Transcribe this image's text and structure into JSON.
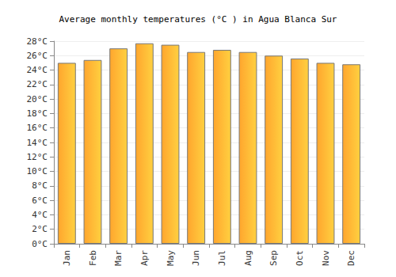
{
  "chart_data": {
    "type": "bar",
    "title": "Average monthly temperatures (°C ) in Agua Blanca Sur",
    "categories": [
      "Jan",
      "Feb",
      "Mar",
      "Apr",
      "May",
      "Jun",
      "Jul",
      "Aug",
      "Sep",
      "Oct",
      "Nov",
      "Dec"
    ],
    "values": [
      25.0,
      25.4,
      27.0,
      27.7,
      27.5,
      26.5,
      26.8,
      26.5,
      26.0,
      25.6,
      25.0,
      24.8
    ],
    "color": "#ffa62e",
    "ylim": [
      0,
      28
    ],
    "yticks": [
      {
        "value": 0,
        "label": "0°C"
      },
      {
        "value": 2,
        "label": "2°C"
      },
      {
        "value": 4,
        "label": "4°C"
      },
      {
        "value": 6,
        "label": "6°C"
      },
      {
        "value": 8,
        "label": "8°C"
      },
      {
        "value": 10,
        "label": "10°C"
      },
      {
        "value": 12,
        "label": "12°C"
      },
      {
        "value": 14,
        "label": "14°C"
      },
      {
        "value": 16,
        "label": "16°C"
      },
      {
        "value": 18,
        "label": "18°C"
      },
      {
        "value": 20,
        "label": "20°C"
      },
      {
        "value": 22,
        "label": "22°C"
      },
      {
        "value": 24,
        "label": "24°C"
      },
      {
        "value": 26,
        "label": "26°C"
      },
      {
        "value": 28,
        "label": "28°C"
      }
    ],
    "grid": true
  }
}
